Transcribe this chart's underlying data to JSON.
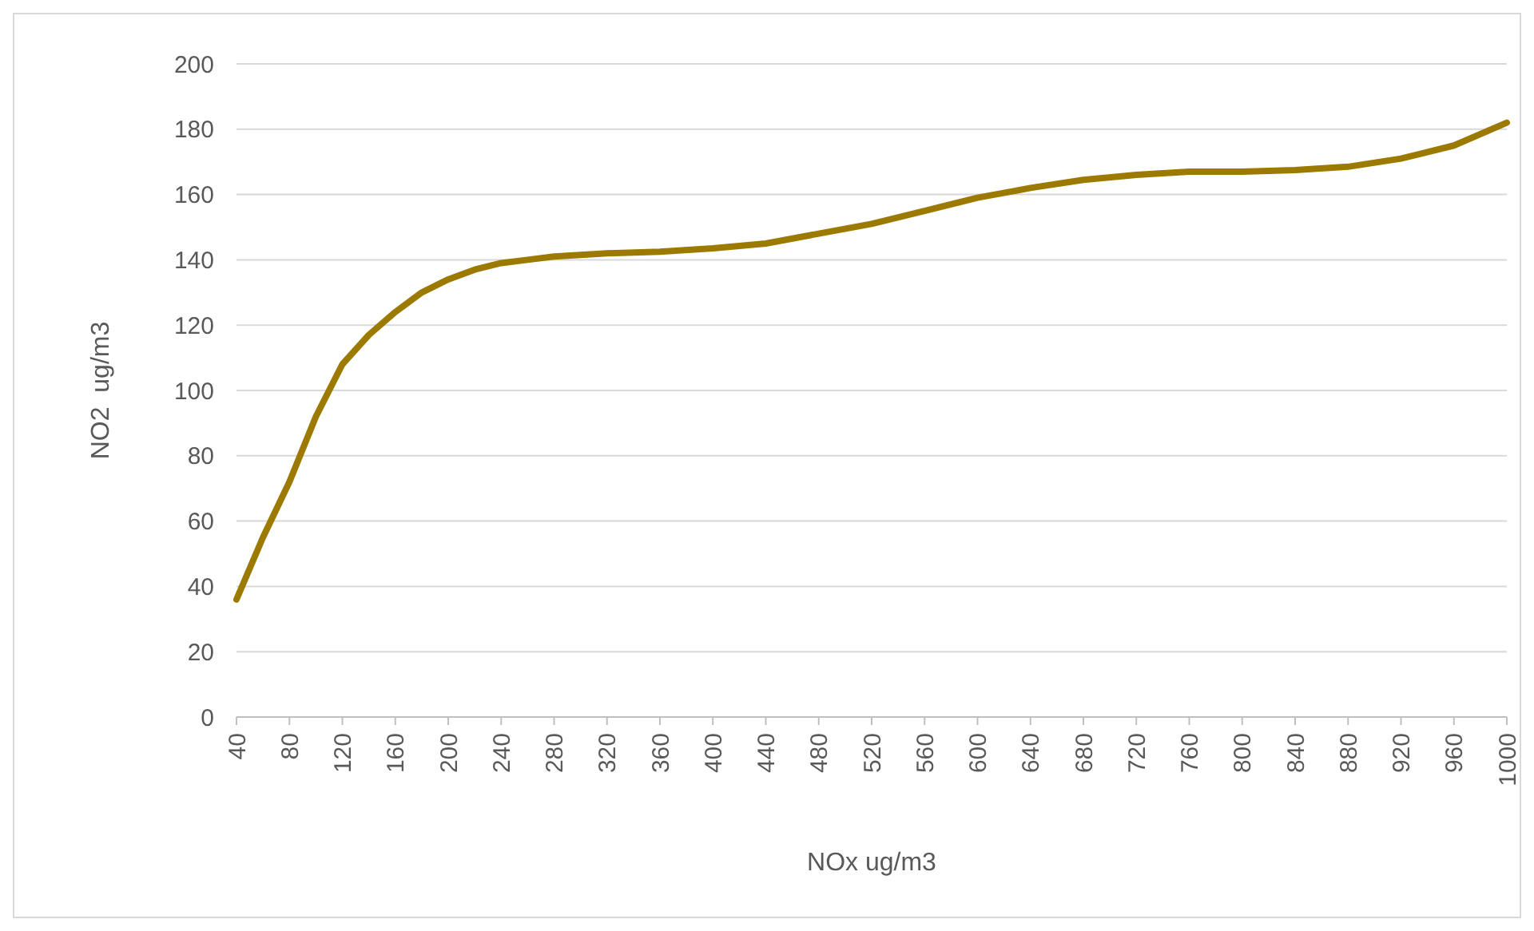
{
  "chart_data": {
    "type": "line",
    "xlabel": "NOx ug/m3",
    "ylabel": "NO2  ug/m3",
    "x": [
      40,
      60,
      80,
      100,
      120,
      140,
      160,
      180,
      200,
      220,
      240,
      260,
      280,
      300,
      320,
      360,
      400,
      440,
      480,
      520,
      560,
      600,
      640,
      680,
      720,
      760,
      800,
      840,
      880,
      920,
      960,
      1000
    ],
    "series": [
      {
        "color": "#9c7a00",
        "values": [
          36,
          55,
          72,
          92,
          108,
          117,
          124,
          130,
          134,
          137,
          139,
          140,
          141,
          141.5,
          142,
          142.5,
          143.5,
          145,
          148,
          151,
          155,
          159,
          162,
          164.5,
          166,
          167,
          167,
          167.5,
          168.5,
          171,
          175,
          182
        ]
      }
    ],
    "xlim": [
      40,
      1000
    ],
    "xticks": [
      40,
      80,
      120,
      160,
      200,
      240,
      280,
      320,
      360,
      400,
      440,
      480,
      520,
      560,
      600,
      640,
      680,
      720,
      760,
      800,
      840,
      880,
      920,
      960,
      1000
    ],
    "ylim": [
      0,
      200
    ],
    "yticks": [
      0,
      20,
      40,
      60,
      80,
      100,
      120,
      140,
      160,
      180,
      200
    ],
    "grid": "y",
    "marker": "none",
    "line_style": "solid"
  }
}
